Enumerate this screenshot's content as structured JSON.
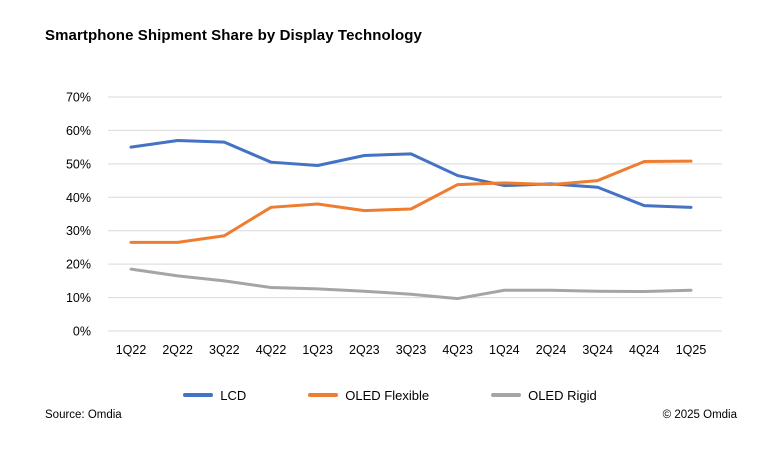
{
  "title": "Smartphone Shipment Share by Display Technology",
  "footer": {
    "source_note": "Source: Omdia",
    "copyright_note": "© 2025 Omdia"
  },
  "chart_data": {
    "type": "line",
    "title": "Smartphone Shipment Share by Display Technology",
    "categories": [
      "1Q22",
      "2Q22",
      "3Q22",
      "4Q22",
      "1Q23",
      "2Q23",
      "3Q23",
      "4Q23",
      "1Q24",
      "2Q24",
      "3Q24",
      "4Q24",
      "1Q25"
    ],
    "series": [
      {
        "name": "LCD",
        "color": "#4472C4",
        "values": [
          55,
          57,
          56.5,
          50.5,
          49.5,
          52.5,
          53,
          46.5,
          43.5,
          44,
          43,
          37.5,
          37
        ]
      },
      {
        "name": "OLED Flexible",
        "color": "#ED7D31",
        "values": [
          26.5,
          26.5,
          28.5,
          37,
          38,
          36,
          36.5,
          43.8,
          44.3,
          43.8,
          45,
          50.7,
          50.8
        ]
      },
      {
        "name": "OLED Rigid",
        "color": "#A5A5A5",
        "values": [
          18.5,
          16.5,
          15,
          13,
          12.6,
          11.9,
          11,
          9.7,
          12.2,
          12.2,
          11.9,
          11.8,
          12.2
        ]
      }
    ],
    "xlabel": "",
    "ylabel": "",
    "ylim": [
      0,
      70
    ],
    "ytick_step": 10,
    "ytick_format": "percent",
    "grid": "horizontal",
    "gridline_color": "#D9D9D9",
    "axis_text_color": "#000000",
    "legend_position": "bottom"
  }
}
